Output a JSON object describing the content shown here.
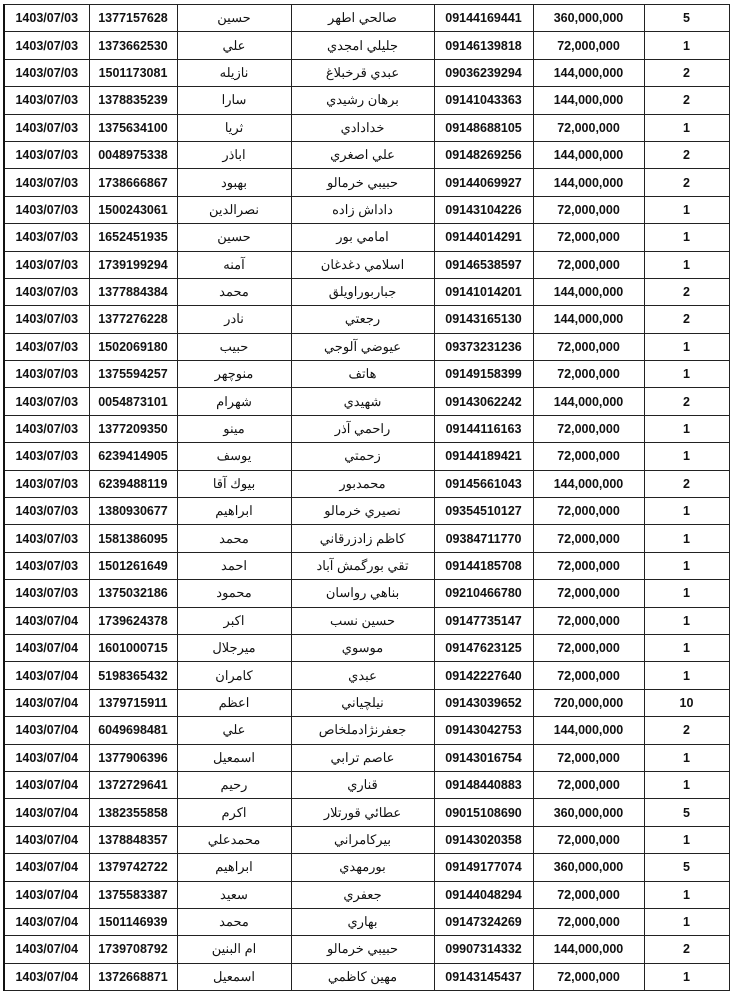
{
  "rows": [
    [
      "1403/07/03",
      "1377157628",
      "حسين",
      "صالحي اطهر",
      "09144169441",
      "360,000,000",
      "5"
    ],
    [
      "1403/07/03",
      "1373662530",
      "علي",
      "جليلي امجدي",
      "09146139818",
      "72,000,000",
      "1"
    ],
    [
      "1403/07/03",
      "1501173081",
      "نازيله",
      "عبدي قرخبلاغ",
      "09036239294",
      "144,000,000",
      "2"
    ],
    [
      "1403/07/03",
      "1378835239",
      "سارا",
      "برهان رشيدي",
      "09141043363",
      "144,000,000",
      "2"
    ],
    [
      "1403/07/03",
      "1375634100",
      "ثريا",
      "خدادادي",
      "09148688105",
      "72,000,000",
      "1"
    ],
    [
      "1403/07/03",
      "0048975338",
      "اباذر",
      "علي اصغري",
      "09148269256",
      "144,000,000",
      "2"
    ],
    [
      "1403/07/03",
      "1738666867",
      "بهبود",
      "حبيبي خرمالو",
      "09144069927",
      "144,000,000",
      "2"
    ],
    [
      "1403/07/03",
      "1500243061",
      "نصرالدين",
      "داداش زاده",
      "09143104226",
      "72,000,000",
      "1"
    ],
    [
      "1403/07/03",
      "1652451935",
      "حسين",
      "امامي بور",
      "09144014291",
      "72,000,000",
      "1"
    ],
    [
      "1403/07/03",
      "1739199294",
      "آمنه",
      "اسلامي دغدغان",
      "09146538597",
      "72,000,000",
      "1"
    ],
    [
      "1403/07/03",
      "1377884384",
      "محمد",
      "جباربوراويلق",
      "09141014201",
      "144,000,000",
      "2"
    ],
    [
      "1403/07/03",
      "1377276228",
      "نادر",
      "رجعتي",
      "09143165130",
      "144,000,000",
      "2"
    ],
    [
      "1403/07/03",
      "1502069180",
      "حبيب",
      "عيوضي آلوجي",
      "09373231236",
      "72,000,000",
      "1"
    ],
    [
      "1403/07/03",
      "1375594257",
      "منوچهر",
      "هاتف",
      "09149158399",
      "72,000,000",
      "1"
    ],
    [
      "1403/07/03",
      "0054873101",
      "شهرام",
      "شهيدي",
      "09143062242",
      "144,000,000",
      "2"
    ],
    [
      "1403/07/03",
      "1377209350",
      "مينو",
      "راحمي آذر",
      "09144116163",
      "72,000,000",
      "1"
    ],
    [
      "1403/07/03",
      "6239414905",
      "يوسف",
      "زحمتي",
      "09144189421",
      "72,000,000",
      "1"
    ],
    [
      "1403/07/03",
      "6239488119",
      "بيوك آقا",
      "محمدبور",
      "09145661043",
      "144,000,000",
      "2"
    ],
    [
      "1403/07/03",
      "1380930677",
      "ابراهيم",
      "نصيري خرمالو",
      "09354510127",
      "72,000,000",
      "1"
    ],
    [
      "1403/07/03",
      "1581386095",
      "محمد",
      "كاظم زادزرقاني",
      "09384711770",
      "72,000,000",
      "1"
    ],
    [
      "1403/07/03",
      "1501261649",
      "احمد",
      "تقي بورگمش آباد",
      "09144185708",
      "72,000,000",
      "1"
    ],
    [
      "1403/07/03",
      "1375032186",
      "محمود",
      "بناهي رواسان",
      "09210466780",
      "72,000,000",
      "1"
    ],
    [
      "1403/07/04",
      "1739624378",
      "اكبر",
      "حسين نسب",
      "09147735147",
      "72,000,000",
      "1"
    ],
    [
      "1403/07/04",
      "1601000715",
      "ميرجلال",
      "موسوي",
      "09147623125",
      "72,000,000",
      "1"
    ],
    [
      "1403/07/04",
      "5198365432",
      "كامران",
      "عبدي",
      "09142227640",
      "72,000,000",
      "1"
    ],
    [
      "1403/07/04",
      "1379715911",
      "اعظم",
      "نيلچياني",
      "09143039652",
      "720,000,000",
      "10"
    ],
    [
      "1403/07/04",
      "6049698481",
      "علي",
      "جعفرنژادملخاص",
      "09143042753",
      "144,000,000",
      "2"
    ],
    [
      "1403/07/04",
      "1377906396",
      "اسمعيل",
      "عاصم ترابي",
      "09143016754",
      "72,000,000",
      "1"
    ],
    [
      "1403/07/04",
      "1372729641",
      "رحيم",
      "قناري",
      "09148440883",
      "72,000,000",
      "1"
    ],
    [
      "1403/07/04",
      "1382355858",
      "اكرم",
      "عطائي قورتلار",
      "09015108690",
      "360,000,000",
      "5"
    ],
    [
      "1403/07/04",
      "1378848357",
      "محمدعلي",
      "بيركامراني",
      "09143020358",
      "72,000,000",
      "1"
    ],
    [
      "1403/07/04",
      "1379742722",
      "ابراهيم",
      "بورمهدي",
      "09149177074",
      "360,000,000",
      "5"
    ],
    [
      "1403/07/04",
      "1375583387",
      "سعيد",
      "جعفري",
      "09144048294",
      "72,000,000",
      "1"
    ],
    [
      "1403/07/04",
      "1501146939",
      "محمد",
      "بهاري",
      "09147324269",
      "72,000,000",
      "1"
    ],
    [
      "1403/07/04",
      "1739708792",
      "ام البنين",
      "حبيبي خرمالو",
      "09907314332",
      "144,000,000",
      "2"
    ],
    [
      "1403/07/04",
      "1372668871",
      "اسمعيل",
      "مهين كاظمي",
      "09143145437",
      "72,000,000",
      "1"
    ]
  ]
}
